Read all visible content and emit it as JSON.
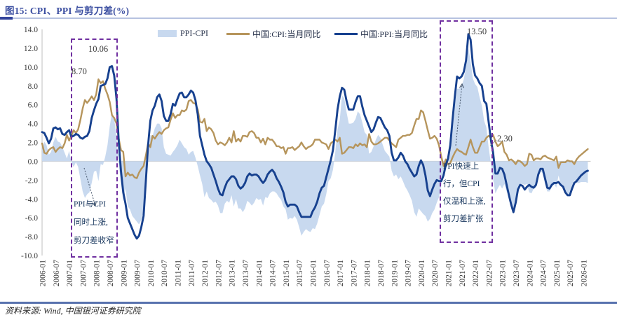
{
  "title": "图15: CPI、PPI 与剪刀差(%)",
  "source": "资料来源: Wind, 中国银河证券研究院",
  "colors": {
    "area": "#c8d9ef",
    "cpi_line": "#b6955c",
    "ppi_line": "#17418f",
    "annotation_box": "#7030a0",
    "axis_text": "#3a3a3a",
    "title": "#3c4fa1"
  },
  "legend": [
    {
      "label": "PPI-CPI",
      "type": "area"
    },
    {
      "label": "中国:CPI:当月同比",
      "type": "line"
    },
    {
      "label": "中国:PPI:当月同比",
      "type": "line"
    }
  ],
  "annotations": {
    "cpi_peak_2008": "8.70",
    "ppi_peak_2008": "10.06",
    "ppi_peak_2021": "13.50",
    "cpi_peak_2021": "2.30",
    "box1_line1": "PPI与CPI",
    "box1_line2": "同时上涨,",
    "box1_line3": "剪刀差收窄",
    "box2_line1": "PPI快速上",
    "box2_line2": "行，但CPI",
    "box2_line3": "仅温和上涨,",
    "box2_line4": "剪刀差扩张"
  },
  "chart_data": {
    "type": "area",
    "subtype": "two lines with PPI-CPI difference area",
    "freq": "monthly",
    "start": "2006-01",
    "end": "2026-03",
    "ylim": [
      -10,
      14
    ],
    "grid": "zero-line only",
    "legend_position": "top-center",
    "y_tick_labels": [
      "14.0",
      "12.0",
      "10.0",
      "8.0",
      "6.0",
      "4.0",
      "2.0",
      "0.0",
      "-2.0",
      "-4.0",
      "-6.0",
      "-8.0",
      "-10.0"
    ],
    "y_tick_values": [
      14,
      12,
      10,
      8,
      6,
      4,
      2,
      0,
      -2,
      -4,
      -6,
      -8,
      -10
    ],
    "x_tick_labels": [
      "2006-01",
      "2006-07",
      "2007-01",
      "2007-07",
      "2008-01",
      "2008-07",
      "2009-01",
      "2009-07",
      "2010-01",
      "2010-07",
      "2011-01",
      "2011-07",
      "2012-01",
      "2012-07",
      "2013-01",
      "2013-07",
      "2014-01",
      "2014-07",
      "2015-01",
      "2015-07",
      "2016-01",
      "2016-07",
      "2017-01",
      "2017-07",
      "2018-01",
      "2018-07",
      "2019-01",
      "2019-07",
      "2020-01",
      "2020-07",
      "2021-01",
      "2021-07",
      "2022-01",
      "2022-07",
      "2023-01",
      "2023-07",
      "2024-01",
      "2024-07",
      "2025-01",
      "2025-07",
      "2026-01"
    ],
    "series": [
      {
        "name": "PPI-CPI",
        "type": "area",
        "color": "#c8d9ef",
        "values_rule": "PPI minus CPI, filled to zero baseline"
      },
      {
        "name": "中国:CPI:当月同比",
        "type": "line",
        "color": "#b6955c",
        "values": [
          1.9,
          0.9,
          0.8,
          1.2,
          1.4,
          1.5,
          1.0,
          1.3,
          1.5,
          1.4,
          1.9,
          2.8,
          2.2,
          2.7,
          3.3,
          3.0,
          3.4,
          4.4,
          5.6,
          6.5,
          6.2,
          6.5,
          6.9,
          6.5,
          7.1,
          8.7,
          8.3,
          8.5,
          7.7,
          7.1,
          6.3,
          4.9,
          4.6,
          4.0,
          2.4,
          1.2,
          1.0,
          -1.6,
          -1.2,
          -1.5,
          -1.4,
          -1.7,
          -1.8,
          -1.2,
          -0.8,
          -0.5,
          0.6,
          1.9,
          1.5,
          2.7,
          2.4,
          2.8,
          3.1,
          2.9,
          3.3,
          3.5,
          3.6,
          4.4,
          5.1,
          4.6,
          4.9,
          4.9,
          5.4,
          5.3,
          5.5,
          6.4,
          6.5,
          6.2,
          6.1,
          5.5,
          4.2,
          4.1,
          4.5,
          3.2,
          3.6,
          3.4,
          3.0,
          2.2,
          1.8,
          2.0,
          1.9,
          1.7,
          2.0,
          2.5,
          2.0,
          3.2,
          2.1,
          2.4,
          2.1,
          2.7,
          2.7,
          2.6,
          3.1,
          3.2,
          3.0,
          2.5,
          2.5,
          2.0,
          2.4,
          1.8,
          2.5,
          2.3,
          2.3,
          2.0,
          1.6,
          1.6,
          1.4,
          1.5,
          0.8,
          1.4,
          1.4,
          1.5,
          1.2,
          1.4,
          1.6,
          2.0,
          1.6,
          1.3,
          1.5,
          1.6,
          1.8,
          2.3,
          2.3,
          2.3,
          2.0,
          1.9,
          1.8,
          1.3,
          1.9,
          2.1,
          2.3,
          2.1,
          2.5,
          0.8,
          0.9,
          1.2,
          1.5,
          1.5,
          1.4,
          1.8,
          1.6,
          1.9,
          1.7,
          1.8,
          1.5,
          2.9,
          2.1,
          1.8,
          1.8,
          1.9,
          2.1,
          2.3,
          2.5,
          2.5,
          2.2,
          1.9,
          1.7,
          1.5,
          2.3,
          2.5,
          2.7,
          2.7,
          2.8,
          2.8,
          3.0,
          3.8,
          4.5,
          4.5,
          5.4,
          5.2,
          4.3,
          3.3,
          2.4,
          2.5,
          2.7,
          2.4,
          1.7,
          0.5,
          -0.5,
          0.2,
          -0.3,
          -0.2,
          0.4,
          0.9,
          1.3,
          1.1,
          1.0,
          0.8,
          0.7,
          1.5,
          2.3,
          1.5,
          0.9,
          0.9,
          1.5,
          2.1,
          2.1,
          2.5,
          2.7,
          2.5,
          2.8,
          2.1,
          1.6,
          1.8,
          2.1,
          1.0,
          0.7,
          0.1,
          0.2,
          0.0,
          -0.3,
          0.1,
          0.0,
          -0.2,
          -0.5,
          -0.3,
          0.8,
          0.7,
          0.1,
          0.3,
          0.3,
          0.2,
          0.5,
          0.6,
          0.4,
          0.3,
          0.2,
          0.1,
          0.5,
          -0.7,
          -0.1,
          -0.1,
          -0.1,
          0.1,
          0.0,
          0.0,
          -0.3,
          0.2,
          0.5,
          0.7,
          0.9,
          1.1,
          1.3
        ]
      },
      {
        "name": "中国:PPI:当月同比",
        "type": "line",
        "color": "#17418f",
        "values": [
          3.1,
          3.0,
          2.5,
          1.9,
          2.4,
          3.5,
          3.6,
          3.4,
          3.5,
          2.9,
          2.8,
          3.1,
          3.3,
          2.6,
          2.7,
          2.9,
          2.8,
          2.5,
          2.4,
          2.6,
          2.7,
          3.2,
          4.6,
          5.4,
          6.1,
          6.6,
          8.0,
          8.1,
          8.2,
          8.8,
          10.0,
          10.1,
          9.1,
          6.6,
          2.0,
          -1.1,
          -3.3,
          -4.5,
          -6.0,
          -6.6,
          -7.2,
          -7.8,
          -8.2,
          -7.9,
          -7.0,
          -5.8,
          -2.1,
          1.7,
          4.3,
          5.4,
          5.9,
          6.8,
          7.1,
          6.4,
          4.8,
          4.3,
          4.3,
          5.0,
          6.1,
          5.9,
          6.6,
          7.2,
          7.3,
          6.8,
          6.8,
          7.1,
          7.5,
          7.3,
          6.5,
          5.0,
          2.7,
          1.7,
          0.7,
          0.0,
          -0.3,
          -0.7,
          -1.4,
          -2.1,
          -2.9,
          -3.5,
          -3.6,
          -2.8,
          -2.2,
          -1.9,
          -1.6,
          -1.6,
          -1.9,
          -2.6,
          -2.9,
          -2.7,
          -2.3,
          -1.6,
          -1.3,
          -1.5,
          -1.4,
          -1.4,
          -1.6,
          -2.0,
          -2.3,
          -2.0,
          -1.4,
          -1.1,
          -0.9,
          -1.2,
          -1.8,
          -2.2,
          -2.7,
          -3.3,
          -4.3,
          -4.8,
          -4.6,
          -4.6,
          -4.6,
          -4.8,
          -5.4,
          -5.9,
          -5.9,
          -5.9,
          -5.9,
          -5.9,
          -5.3,
          -4.9,
          -4.3,
          -3.4,
          -2.8,
          -2.6,
          -1.7,
          -0.8,
          0.1,
          1.2,
          3.3,
          5.5,
          6.9,
          7.8,
          7.6,
          6.4,
          5.5,
          5.5,
          5.5,
          6.3,
          6.9,
          6.9,
          5.8,
          4.9,
          4.3,
          3.7,
          3.1,
          3.4,
          4.1,
          4.7,
          4.6,
          4.1,
          3.6,
          3.3,
          2.7,
          0.9,
          0.1,
          0.1,
          0.4,
          0.9,
          0.6,
          0.0,
          -0.3,
          -0.8,
          -1.2,
          -1.6,
          -1.4,
          -0.5,
          0.1,
          -0.4,
          -1.5,
          -3.1,
          -3.7,
          -3.0,
          -2.4,
          -2.0,
          -2.1,
          -2.1,
          -1.5,
          -0.4,
          0.3,
          1.7,
          4.4,
          6.8,
          9.0,
          8.8,
          9.0,
          9.5,
          10.7,
          13.5,
          12.9,
          10.3,
          9.1,
          8.8,
          8.3,
          8.0,
          6.4,
          6.1,
          4.2,
          2.3,
          0.9,
          -1.3,
          -1.3,
          -0.7,
          -0.8,
          -1.4,
          -2.5,
          -3.6,
          -4.6,
          -5.4,
          -4.4,
          -3.0,
          -2.5,
          -2.6,
          -3.0,
          -2.7,
          -2.5,
          -2.7,
          -2.8,
          -2.5,
          -1.4,
          -0.8,
          -0.8,
          -1.8,
          -2.8,
          -2.9,
          -2.5,
          -2.3,
          -2.3,
          -2.2,
          -2.5,
          -2.7,
          -3.3,
          -3.6,
          -3.6,
          -2.9,
          -2.3,
          -2.1,
          -1.8,
          -1.5,
          -1.3,
          -1.1,
          -1.0
        ]
      }
    ]
  }
}
